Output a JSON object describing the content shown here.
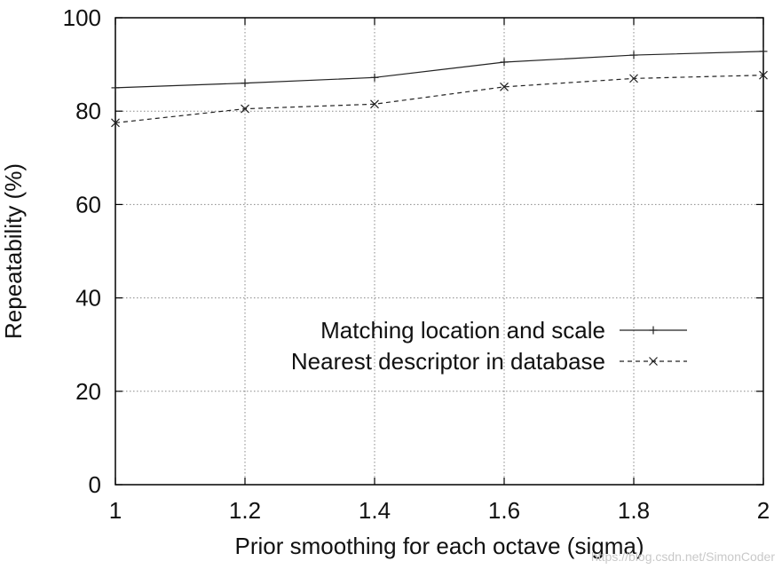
{
  "chart_data": {
    "type": "line",
    "xlabel": "Prior smoothing for each octave (sigma)",
    "ylabel": "Repeatability (%)",
    "xlim": [
      1,
      2
    ],
    "ylim": [
      0,
      100
    ],
    "x_ticks": [
      "1",
      "1.2",
      "1.4",
      "1.6",
      "1.8",
      "2"
    ],
    "x_tick_values": [
      1,
      1.2,
      1.4,
      1.6,
      1.8,
      2
    ],
    "y_ticks": [
      "0",
      "20",
      "40",
      "60",
      "80",
      "100"
    ],
    "y_tick_values": [
      0,
      20,
      40,
      60,
      80,
      100
    ],
    "grid": true,
    "legend_position": "center-right",
    "series": [
      {
        "name": "Matching location and scale",
        "x": [
          1,
          1.2,
          1.4,
          1.6,
          1.8,
          2
        ],
        "y": [
          85,
          86,
          87.2,
          90.5,
          92,
          92.8
        ],
        "line_style": "solid",
        "marker": "plus",
        "color": "#222222"
      },
      {
        "name": "Nearest descriptor in database",
        "x": [
          1,
          1.2,
          1.4,
          1.6,
          1.8,
          2
        ],
        "y": [
          77.5,
          80.5,
          81.5,
          85.2,
          87,
          87.7
        ],
        "line_style": "dashed",
        "marker": "x",
        "color": "#222222"
      }
    ]
  },
  "watermark": "https://blog.csdn.net/SimonCoder"
}
